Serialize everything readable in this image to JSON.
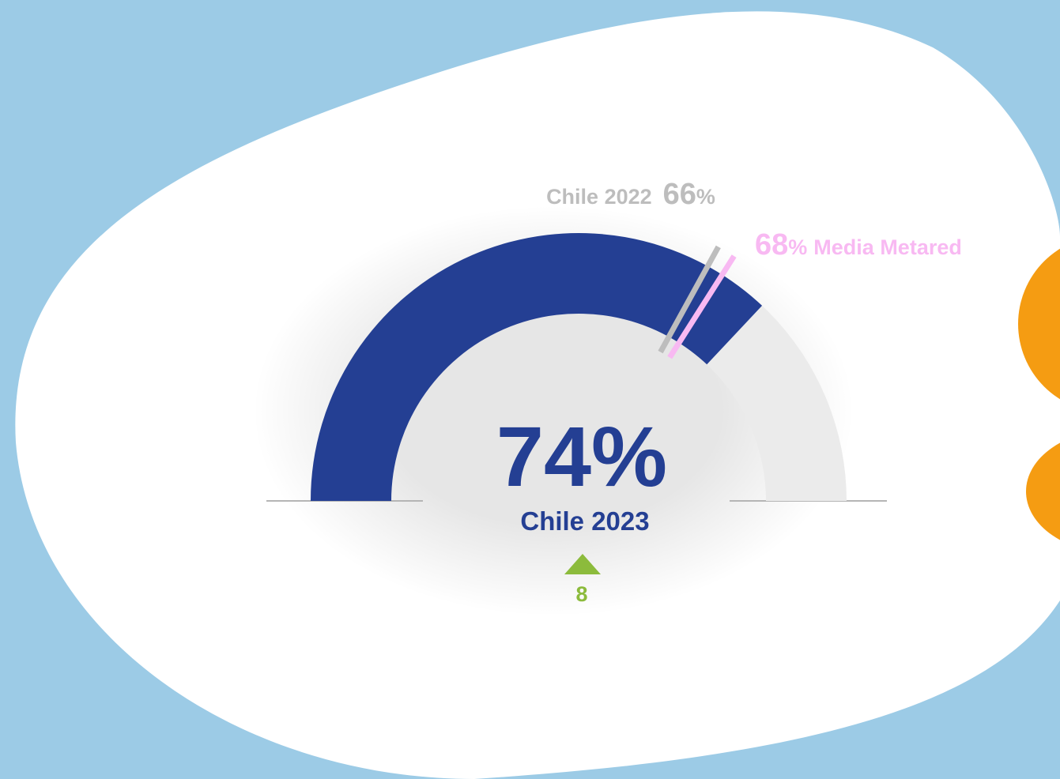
{
  "chart_data": {
    "type": "gauge",
    "value": 74,
    "unit": "%",
    "label": "Chile 2023",
    "color": "#243f93",
    "track_color": "#ebebeb",
    "ylim": [
      0,
      100
    ],
    "change": 8,
    "change_color": "#8cbb3c",
    "markers": [
      {
        "name": "Chile 2022",
        "value": 66,
        "color": "#bdbdbd"
      },
      {
        "name": "Media Metared",
        "value": 68,
        "color": "#f8b9f2"
      }
    ]
  }
}
